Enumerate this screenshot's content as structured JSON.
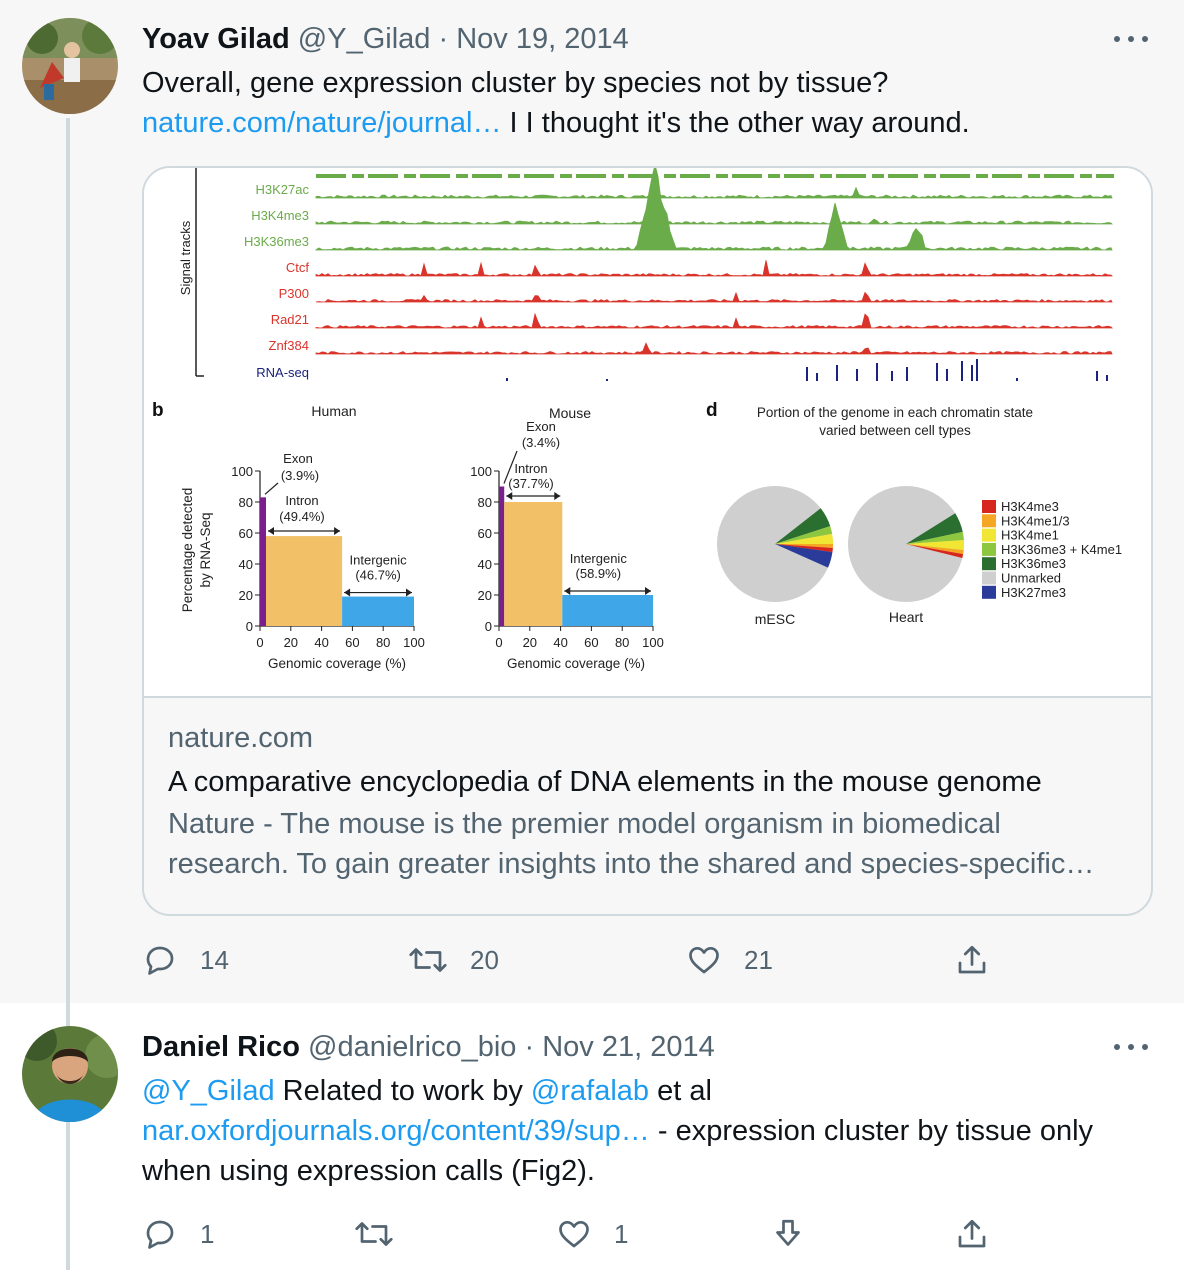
{
  "tweets": [
    {
      "name": "Yoav Gilad",
      "handle": "@Y_Gilad",
      "separator": "·",
      "date": "Nov 19, 2014",
      "text_line1": "Overall, gene expression cluster by species not by tissue?",
      "link": "nature.com/nature/journal…",
      "text_line2_rest": " I I thought it's the other way around.",
      "card": {
        "domain": "nature.com",
        "title": "A comparative encyclopedia of DNA elements in the mouse genome",
        "description": "Nature - The mouse is the premier model organism in biomedical research. To gain greater insights into the shared and species-specific…"
      },
      "actions": {
        "replies": "14",
        "retweets": "20",
        "likes": "21"
      }
    },
    {
      "name": "Daniel Rico",
      "handle": "@danielrico_bio",
      "separator": "·",
      "date": "Nov 21, 2014",
      "mention1": "@Y_Gilad",
      "text_mid": " Related to work by ",
      "mention2": "@rafalab",
      "text_end": " et al",
      "link": "nar.oxfordjournals.org/content/39/sup…",
      "text_after_link": " - expression cluster by tissue only when using expression calls (Fig2).",
      "actions": {
        "replies": "1",
        "likes": "1"
      }
    }
  ],
  "figure": {
    "tracks_axis_label": "Signal tracks",
    "tracks": [
      "H3K27ac",
      "H3K4me3",
      "H3K36me3",
      "Ctcf",
      "P300",
      "Rad21",
      "Znf384",
      "RNA-seq"
    ],
    "panel_b": "b",
    "panel_d": "d",
    "human_title": "Human",
    "mouse_title": "Mouse",
    "ylabel_line1": "Percentage detected",
    "ylabel_line2": "by RNA-Seq",
    "xlabel": "Genomic coverage (%)",
    "y_ticks": [
      "100",
      "80",
      "60",
      "40",
      "20",
      "0"
    ],
    "x_ticks": [
      "0",
      "20",
      "40",
      "60",
      "80",
      "100"
    ],
    "human_labels": {
      "exon": "Exon",
      "exon_pct": "(3.9%)",
      "intron": "Intron",
      "intron_pct": "(49.4%)",
      "intergenic": "Intergenic",
      "intergenic_pct": "(46.7%)"
    },
    "mouse_labels": {
      "exon": "Exon",
      "exon_pct": "(3.4%)",
      "intron": "Intron",
      "intron_pct": "(37.7%)",
      "intergenic": "Intergenic",
      "intergenic_pct": "(58.9%)"
    },
    "d_title_line1": "Portion of the genome in each chromatin state",
    "d_title_line2": "varied between cell types",
    "pie_labels": [
      "mESC",
      "Heart"
    ],
    "legend": [
      {
        "label": "H3K4me3",
        "color": "#d7261e"
      },
      {
        "label": "H3K4me1/3",
        "color": "#f5a623"
      },
      {
        "label": "H3K4me1",
        "color": "#f2e634"
      },
      {
        "label": "H3K36me3 + K4me1",
        "color": "#8dc63f"
      },
      {
        "label": "H3K36me3",
        "color": "#2a6e30"
      },
      {
        "label": "Unmarked",
        "color": "#cfcfcf"
      },
      {
        "label": "H3K27me3",
        "color": "#2b3b9a"
      }
    ],
    "colors": {
      "green_track": "#6aab4a",
      "red_track": "#d9342b",
      "rna_track": "#1a237e",
      "exon": "#7b1f8c",
      "intron": "#f2c066",
      "intergenic": "#3fa7e8"
    }
  },
  "chart_data": [
    {
      "type": "bar",
      "title": "Human",
      "xlabel": "Genomic coverage (%)",
      "ylabel": "Percentage detected by RNA-Seq",
      "categories": [
        "Exon",
        "Intron",
        "Intergenic"
      ],
      "coverage_pct": [
        3.9,
        49.4,
        46.7
      ],
      "values": [
        83,
        58,
        19
      ],
      "xlim": [
        0,
        100
      ],
      "ylim": [
        0,
        100
      ]
    },
    {
      "type": "bar",
      "title": "Mouse",
      "xlabel": "Genomic coverage (%)",
      "ylabel": "Percentage detected by RNA-Seq",
      "categories": [
        "Exon",
        "Intron",
        "Intergenic"
      ],
      "coverage_pct": [
        3.4,
        37.7,
        58.9
      ],
      "values": [
        90,
        80,
        20
      ],
      "xlim": [
        0,
        100
      ],
      "ylim": [
        0,
        100
      ]
    }
  ]
}
